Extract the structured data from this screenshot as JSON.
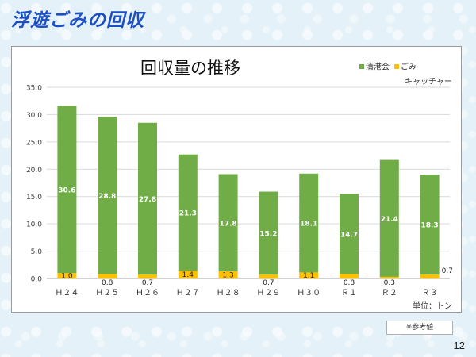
{
  "page": {
    "title": "浮遊ごみの回収",
    "note": "※参考値",
    "page_number": "12"
  },
  "colors": {
    "title": "#1d4fc4",
    "series_green": "#70ad47",
    "series_yellow": "#ffc000",
    "grid": "#d9d9d9"
  },
  "chart_data": {
    "type": "bar",
    "stacked": true,
    "title": "回収量の推移",
    "unit_label": "単位：トン",
    "categories": [
      "Ｈ２４",
      "Ｈ２５",
      "Ｈ２６",
      "Ｈ２７",
      "Ｈ２８",
      "Ｈ２９",
      "Ｈ３０",
      "Ｒ１",
      "Ｒ２",
      "Ｒ３"
    ],
    "series": [
      {
        "name": "ごみキャッチャー",
        "color": "#ffc000",
        "values": [
          1.0,
          0.8,
          0.7,
          1.4,
          1.3,
          0.7,
          1.1,
          0.8,
          0.3,
          0.7
        ]
      },
      {
        "name": "清港会",
        "color": "#70ad47",
        "values": [
          30.6,
          28.8,
          27.8,
          21.3,
          17.8,
          15.2,
          18.1,
          14.7,
          21.4,
          18.3
        ]
      }
    ],
    "yticks": [
      "0.0",
      "5.0",
      "10.0",
      "15.0",
      "20.0",
      "25.0",
      "30.0",
      "35.0"
    ],
    "ylim": [
      0,
      35
    ],
    "grid": true,
    "legend_position": "top-right"
  }
}
